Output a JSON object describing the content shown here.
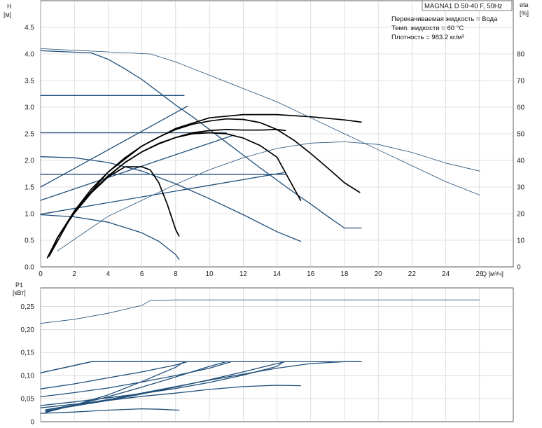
{
  "title": "MAGNA1 D 50-40 F, 50Hz",
  "info_lines": [
    "Перекачиваемая жидкость = Вода",
    "Темп. жидкости = 60 °C",
    "Плотность = 983.2 кг/м³"
  ],
  "colors": {
    "curve": "#1f4e79",
    "eff": "#1f4e79",
    "bold": "#000000",
    "grid": "#c8c8c8",
    "axis": "#333333"
  },
  "chart_data": [
    {
      "type": "line",
      "name": "qh",
      "ylabel_left": "H",
      "ylabel_left_unit": "[м]",
      "ylabel_right": "eta",
      "ylabel_right_unit": "[%]",
      "xlabel": "Q [м³/ч]",
      "x_ticks": [
        0,
        2,
        4,
        6,
        8,
        10,
        12,
        14,
        16,
        18,
        20,
        22,
        24,
        26
      ],
      "y_ticks": [
        0.0,
        0.5,
        1.0,
        1.5,
        2.0,
        2.5,
        3.0,
        3.5,
        4.0,
        4.5
      ],
      "y2_ticks": [
        0,
        10,
        20,
        30,
        40,
        50,
        60,
        70,
        80
      ],
      "xlim": [
        0,
        28
      ],
      "ylim": [
        0,
        5
      ],
      "y2lim": [
        0,
        100
      ],
      "series": [
        {
          "axis": "left",
          "style": "curve",
          "x": [
            0,
            3,
            4,
            5,
            6,
            7,
            8,
            9,
            10,
            11,
            12,
            13,
            14,
            15,
            16,
            17,
            18,
            19
          ],
          "y": [
            4.06,
            4.02,
            3.9,
            3.72,
            3.52,
            3.28,
            3.04,
            2.82,
            2.58,
            2.34,
            2.1,
            1.86,
            1.63,
            1.4,
            1.18,
            0.95,
            0.73,
            0.73
          ]
        },
        {
          "axis": "left",
          "style": "curve",
          "x": [
            0,
            8.5
          ],
          "y": [
            3.22,
            3.22
          ]
        },
        {
          "axis": "left",
          "style": "curve",
          "x": [
            0,
            11
          ],
          "y": [
            2.52,
            2.52
          ]
        },
        {
          "axis": "left",
          "style": "curve",
          "x": [
            0,
            14.5
          ],
          "y": [
            1.74,
            1.74
          ]
        },
        {
          "axis": "left",
          "style": "curve",
          "x": [
            0,
            8.7
          ],
          "y": [
            1.5,
            3.02
          ]
        },
        {
          "axis": "left",
          "style": "curve",
          "x": [
            0,
            11.3
          ],
          "y": [
            1.25,
            2.46
          ]
        },
        {
          "axis": "left",
          "style": "curve",
          "x": [
            0,
            14.4
          ],
          "y": [
            0.99,
            1.77
          ]
        },
        {
          "axis": "left",
          "style": "curve",
          "x": [
            0,
            2,
            4,
            6,
            8,
            10,
            12,
            14,
            15.4
          ],
          "y": [
            2.07,
            2.05,
            1.96,
            1.8,
            1.56,
            1.28,
            0.98,
            0.66,
            0.48
          ]
        },
        {
          "axis": "left",
          "style": "curve",
          "x": [
            0,
            2,
            4,
            6,
            7,
            8,
            8.2
          ],
          "y": [
            0.98,
            0.94,
            0.84,
            0.64,
            0.48,
            0.23,
            0.14
          ]
        },
        {
          "axis": "left",
          "style": "bold",
          "x": [
            0.4,
            1,
            2,
            3,
            4,
            5,
            6,
            7,
            8,
            9,
            10,
            11,
            12,
            13,
            14,
            15,
            16,
            17,
            18,
            18.9
          ],
          "y": [
            0.17,
            0.55,
            1.05,
            1.46,
            1.78,
            2.05,
            2.27,
            2.44,
            2.58,
            2.68,
            2.74,
            2.78,
            2.77,
            2.71,
            2.58,
            2.38,
            2.13,
            1.86,
            1.58,
            1.4
          ]
        },
        {
          "axis": "left",
          "style": "bold",
          "x": [
            0.5,
            1,
            2,
            3,
            4,
            5,
            6,
            7,
            8,
            9,
            10,
            11,
            12,
            13,
            14,
            14.5
          ],
          "y": [
            0.2,
            0.55,
            1.02,
            1.4,
            1.7,
            1.96,
            2.16,
            2.31,
            2.43,
            2.52,
            2.56,
            2.58,
            2.57,
            2.57,
            2.58,
            2.56
          ]
        },
        {
          "axis": "left",
          "style": "bold",
          "x": [
            0.6,
            1,
            2,
            3,
            4,
            5,
            6,
            7,
            8,
            9,
            10,
            11,
            12,
            13,
            14,
            15.4
          ],
          "y": [
            0.28,
            0.55,
            1.02,
            1.4,
            1.71,
            1.96,
            2.16,
            2.32,
            2.43,
            2.5,
            2.52,
            2.5,
            2.42,
            2.28,
            2.06,
            1.25
          ]
        },
        {
          "axis": "left",
          "style": "bold",
          "x": [
            0.7,
            1,
            2,
            3,
            4,
            5,
            6,
            6.5,
            7,
            7.5,
            8,
            8.2
          ],
          "y": [
            0.33,
            0.55,
            1.01,
            1.39,
            1.69,
            1.88,
            1.88,
            1.82,
            1.58,
            1.18,
            0.7,
            0.58
          ]
        },
        {
          "axis": "left",
          "style": "bold",
          "x": [
            0.5,
            2,
            4,
            6,
            8,
            10,
            12,
            14,
            16,
            18,
            19
          ],
          "y": [
            0.2,
            1.05,
            1.78,
            2.27,
            2.6,
            2.8,
            2.86,
            2.86,
            2.82,
            2.76,
            2.72
          ]
        },
        {
          "axis": "right",
          "style": "eff",
          "x": [
            0,
            6.5,
            8,
            10,
            12,
            14,
            16,
            18,
            20,
            22,
            24,
            26
          ],
          "y": [
            82.0,
            80.0,
            77.0,
            72.0,
            67.0,
            62.0,
            56.0,
            50.0,
            44.0,
            38.0,
            32.0,
            27.0
          ]
        },
        {
          "axis": "right",
          "style": "eff",
          "x": [
            1,
            4,
            6,
            8,
            10,
            12,
            14,
            16,
            18,
            20,
            22,
            24,
            26
          ],
          "y": [
            6.0,
            19.0,
            25.0,
            31.0,
            36.5,
            41.0,
            44.5,
            46.5,
            47.0,
            46.0,
            43.0,
            39.0,
            36.0
          ]
        }
      ]
    },
    {
      "type": "line",
      "name": "power",
      "ylabel": "P1",
      "ylabel_unit": "[кВт]",
      "y_ticks": [
        0,
        0.05,
        0.1,
        0.15,
        0.2,
        0.25
      ],
      "y_tick_labels": [
        "0",
        "0,05",
        "0,10",
        "0,15",
        "0,20",
        "0,25"
      ],
      "xlim": [
        0,
        28
      ],
      "ylim": [
        0,
        0.29
      ],
      "series": [
        {
          "style": "eff",
          "x": [
            0,
            2,
            4,
            6,
            6.5,
            8,
            10,
            14,
            20,
            26
          ],
          "y": [
            0.213,
            0.222,
            0.235,
            0.252,
            0.263,
            0.264,
            0.264,
            0.264,
            0.264,
            0.264
          ]
        },
        {
          "style": "curve",
          "x": [
            0,
            3,
            8.6
          ],
          "y": [
            0.106,
            0.13,
            0.13
          ]
        },
        {
          "style": "curve",
          "x": [
            0,
            3,
            19
          ],
          "y": [
            0.106,
            0.13,
            0.13
          ]
        },
        {
          "style": "curve",
          "x": [
            0,
            2,
            4,
            6,
            8,
            8.7
          ],
          "y": [
            0.071,
            0.082,
            0.095,
            0.108,
            0.123,
            0.13
          ]
        },
        {
          "style": "curve",
          "x": [
            0,
            2,
            4,
            6,
            8,
            10,
            11.3
          ],
          "y": [
            0.054,
            0.063,
            0.073,
            0.086,
            0.1,
            0.116,
            0.13
          ]
        },
        {
          "style": "curve",
          "x": [
            0,
            2,
            4,
            6,
            8,
            10,
            12,
            14,
            14.4
          ],
          "y": [
            0.035,
            0.043,
            0.052,
            0.061,
            0.072,
            0.085,
            0.101,
            0.12,
            0.13
          ]
        },
        {
          "style": "curve",
          "x": [
            0,
            2,
            4,
            6,
            8,
            10,
            12,
            14,
            15.4
          ],
          "y": [
            0.03,
            0.038,
            0.046,
            0.055,
            0.062,
            0.07,
            0.076,
            0.079,
            0.078
          ]
        },
        {
          "style": "curve",
          "x": [
            0,
            2,
            4,
            6,
            7,
            8.2
          ],
          "y": [
            0.018,
            0.021,
            0.025,
            0.028,
            0.027,
            0.025
          ]
        },
        {
          "style": "curve",
          "x": [
            0.3,
            2,
            4,
            6,
            8,
            8.5
          ],
          "y": [
            0.02,
            0.036,
            0.058,
            0.087,
            0.118,
            0.13
          ]
        },
        {
          "style": "curve",
          "x": [
            0.3,
            2,
            4,
            6,
            8,
            10,
            11
          ],
          "y": [
            0.022,
            0.036,
            0.054,
            0.075,
            0.097,
            0.12,
            0.13
          ]
        },
        {
          "style": "curve",
          "x": [
            0.3,
            2,
            4,
            6,
            8,
            10,
            12,
            14,
            14.5
          ],
          "y": [
            0.024,
            0.034,
            0.046,
            0.06,
            0.075,
            0.091,
            0.108,
            0.126,
            0.13
          ]
        },
        {
          "style": "curve",
          "x": [
            0.3,
            2,
            4,
            6,
            8,
            10,
            12,
            14,
            16,
            18,
            19
          ],
          "y": [
            0.026,
            0.036,
            0.048,
            0.062,
            0.076,
            0.09,
            0.103,
            0.116,
            0.126,
            0.13,
            0.13
          ]
        }
      ]
    }
  ]
}
